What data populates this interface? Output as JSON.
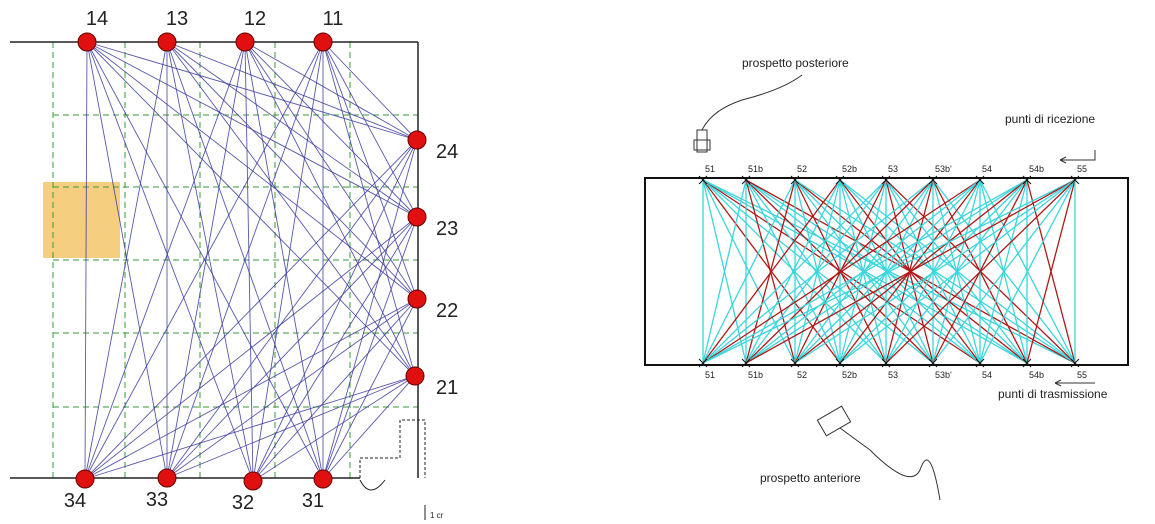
{
  "left": {
    "top_nodes": [
      "14",
      "13",
      "12",
      "11"
    ],
    "right_nodes": [
      "24",
      "23",
      "22",
      "21"
    ],
    "bottom_nodes": [
      "34",
      "33",
      "32",
      "31"
    ],
    "scale_label": "1 cr"
  },
  "right": {
    "top_points": [
      "51",
      "51b",
      "52",
      "52b",
      "53",
      "53b'",
      "54",
      "54b",
      "55"
    ],
    "bottom_points": [
      "51",
      "51b",
      "52",
      "52b",
      "53",
      "53b'",
      "54",
      "54b",
      "55"
    ],
    "label_posterior": "prospetto posteriore",
    "label_reception": "punti di ricezione",
    "label_transmission": "punti di trasmissione",
    "label_anterior": "prospetto anteriore"
  }
}
